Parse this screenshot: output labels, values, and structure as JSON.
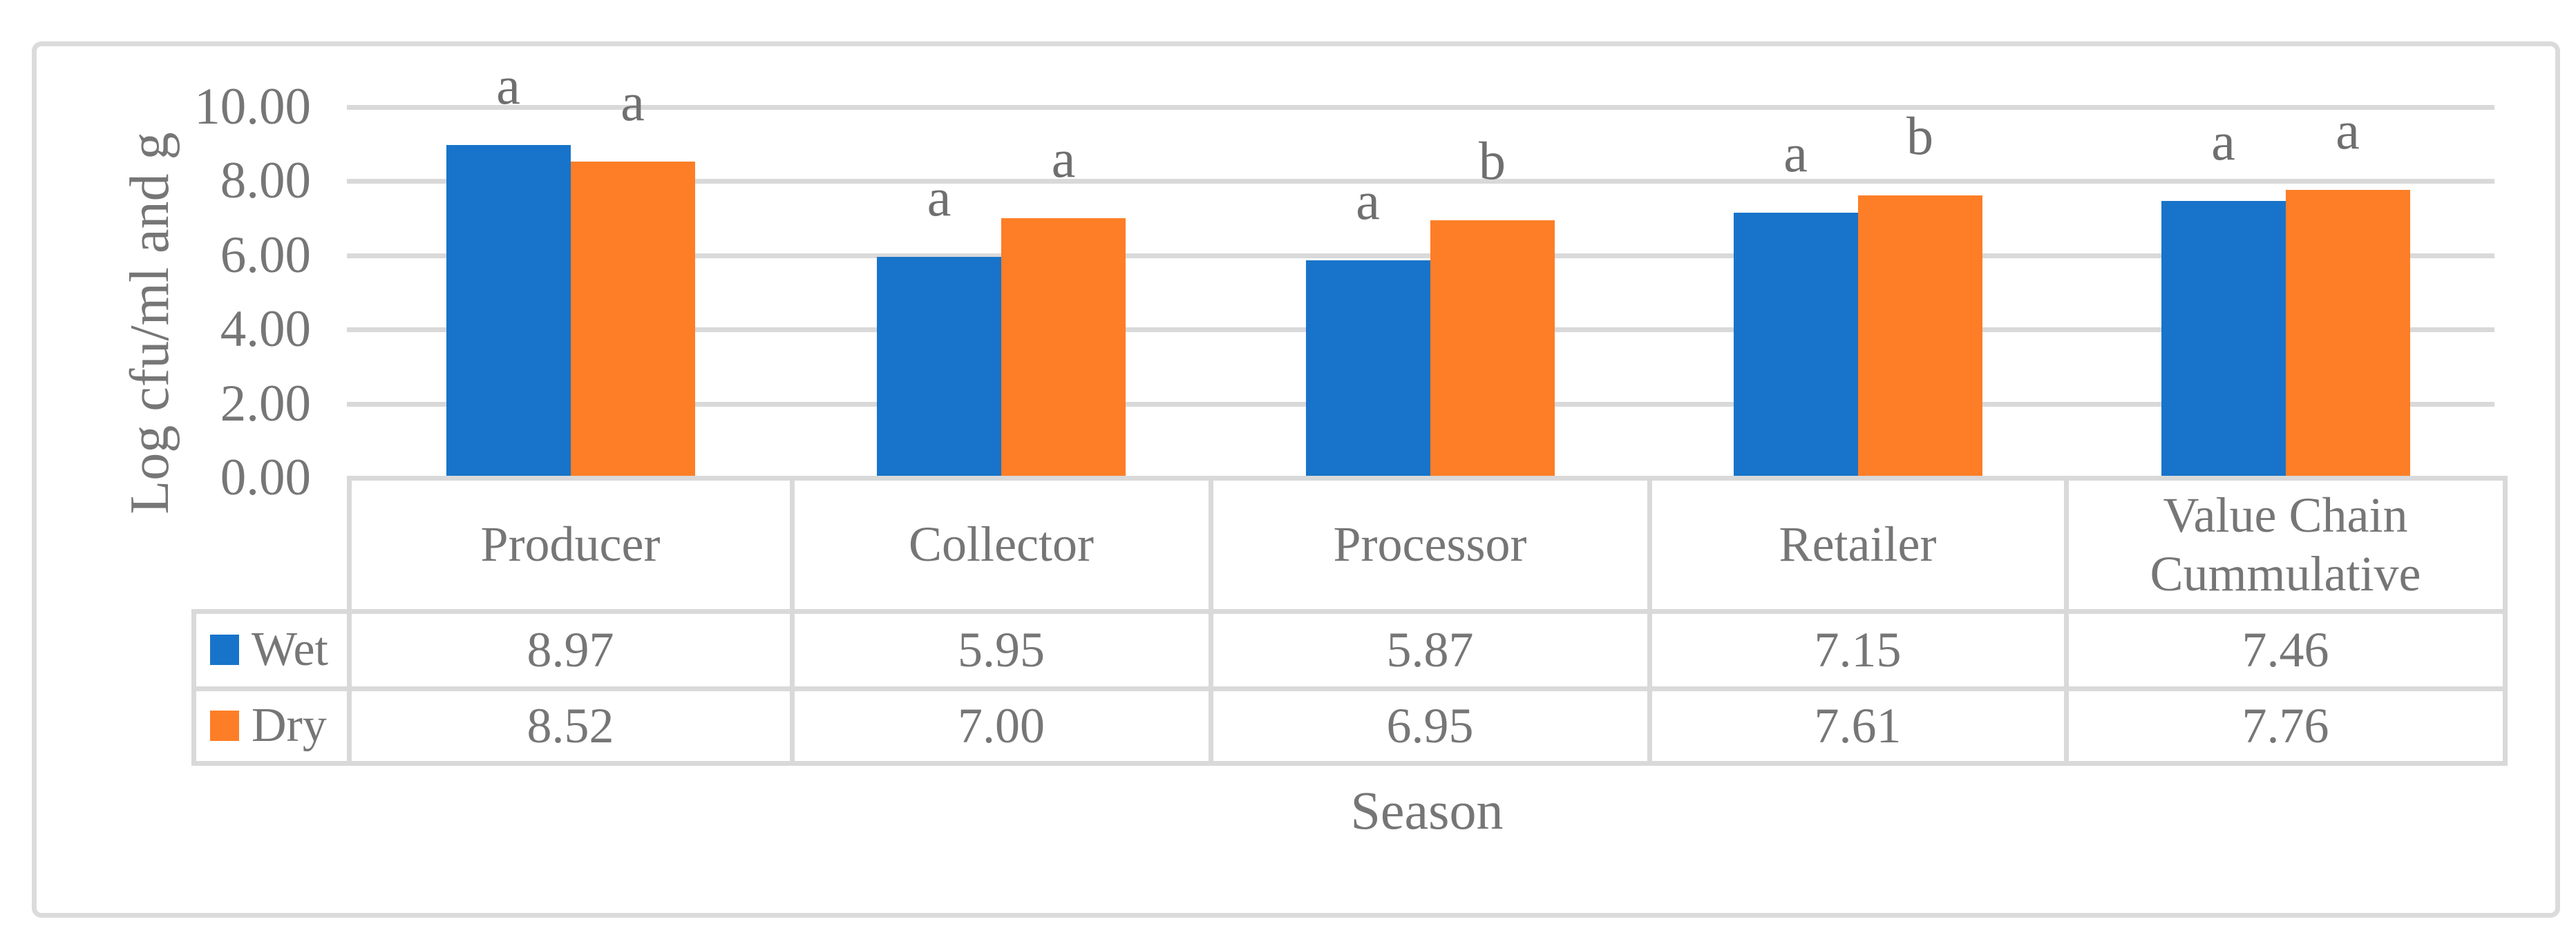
{
  "chart_data": {
    "type": "bar",
    "title": "",
    "categories": [
      "Producer",
      "Collector",
      "Processor",
      "Retailer",
      "Value Chain Cummulative"
    ],
    "series": [
      {
        "name": "Wet",
        "color": "#1874CA",
        "values": [
          8.97,
          5.95,
          5.87,
          7.15,
          7.46
        ],
        "table_values": [
          "8.97",
          "5.95",
          "5.87",
          "7.15",
          "7.46"
        ],
        "letters": [
          "a",
          "a",
          "a",
          "a",
          "a"
        ]
      },
      {
        "name": "Dry",
        "color": "#FD7E26",
        "values": [
          8.52,
          7.0,
          6.95,
          7.61,
          7.76
        ],
        "table_values": [
          "8.52",
          "7.00",
          "6.95",
          "7.61",
          "7.76"
        ],
        "letters": [
          "a",
          "a",
          "b",
          "b",
          "a"
        ]
      }
    ],
    "xlabel": "Season",
    "ylabel": "Log cfu/ml and g",
    "ylim": [
      0,
      10
    ],
    "yticks": [
      "10.00",
      "8.00",
      "6.00",
      "4.00",
      "2.00",
      "0.00"
    ],
    "ytick_values": [
      10,
      8,
      6,
      4,
      2,
      0
    ],
    "grid": true,
    "legend_position": "table-left",
    "annotation_note": "letters a/b shown above bars"
  },
  "colors": {
    "wet_blue": "#1874CA",
    "dry_orange": "#FD7E26",
    "text_gray": "#767676",
    "grid_gray": "#D9D9D9",
    "border_gray": "#DBDBDB"
  }
}
